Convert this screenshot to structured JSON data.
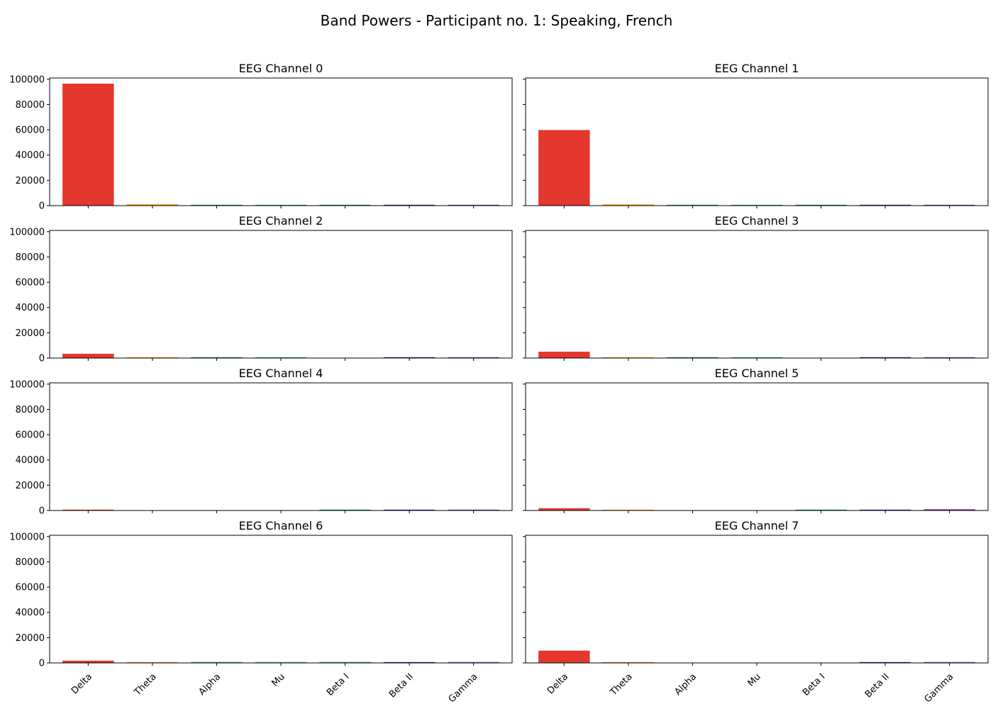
{
  "chart_data": {
    "type": "bar",
    "title": "Band Powers - Participant no. 1: Speaking, French",
    "categories": [
      "Delta",
      "Theta",
      "Alpha",
      "Mu",
      "Beta I",
      "Beta II",
      "Gamma"
    ],
    "category_colors": [
      "#e3372e",
      "#f5a623",
      "#2e8b57",
      "#3aa6a6",
      "#1e7f7f",
      "#2b2b9b",
      "#7e3fa8"
    ],
    "y_ticks": [
      "0",
      "20000",
      "40000",
      "60000",
      "80000",
      "100000"
    ],
    "ylim": [
      0,
      101000
    ],
    "grid": false,
    "layout": "4x2 subplots, shared y axis",
    "panels": [
      {
        "title": "EEG Channel 0",
        "values": [
          96500,
          1100,
          400,
          300,
          350,
          450,
          500
        ]
      },
      {
        "title": "EEG Channel 1",
        "values": [
          59800,
          1000,
          400,
          300,
          300,
          400,
          450
        ]
      },
      {
        "title": "EEG Channel 2",
        "values": [
          3400,
          500,
          300,
          250,
          0,
          350,
          400
        ]
      },
      {
        "title": "EEG Channel 3",
        "values": [
          5000,
          500,
          300,
          250,
          0,
          350,
          400
        ]
      },
      {
        "title": "EEG Channel 4",
        "values": [
          500,
          0,
          0,
          0,
          300,
          350,
          400
        ]
      },
      {
        "title": "EEG Channel 5",
        "values": [
          1800,
          600,
          0,
          0,
          400,
          500,
          1000
        ]
      },
      {
        "title": "EEG Channel 6",
        "values": [
          1800,
          500,
          300,
          250,
          300,
          350,
          400
        ]
      },
      {
        "title": "EEG Channel 7",
        "values": [
          9700,
          500,
          0,
          0,
          0,
          450,
          500
        ]
      }
    ]
  }
}
